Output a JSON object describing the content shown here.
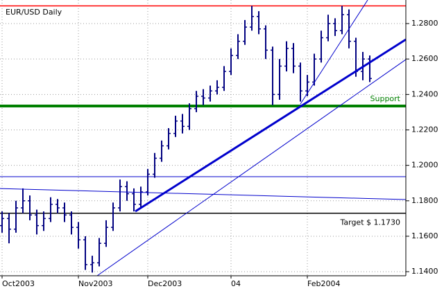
{
  "chart_data": {
    "type": "ohlc",
    "title": "EUR/USD Daily",
    "categories": [
      "Oct2003",
      null,
      null,
      null,
      null,
      null,
      null,
      null,
      null,
      null,
      null,
      "Nov2003",
      null,
      null,
      null,
      null,
      null,
      null,
      null,
      null,
      null,
      "Dec2003",
      null,
      null,
      null,
      null,
      null,
      null,
      null,
      null,
      null,
      null,
      null,
      "04",
      null,
      null,
      null,
      null,
      null,
      null,
      null,
      null,
      null,
      null,
      "Feb2004",
      null,
      null,
      null,
      null,
      null,
      null,
      null,
      null,
      null
    ],
    "open": [
      1.166,
      1.17,
      1.164,
      1.176,
      1.18,
      1.172,
      1.166,
      1.17,
      1.178,
      1.176,
      1.172,
      1.165,
      1.158,
      1.144,
      1.145,
      1.156,
      1.165,
      1.176,
      1.188,
      1.184,
      1.178,
      1.185,
      1.195,
      1.204,
      1.211,
      1.218,
      1.225,
      1.222,
      1.232,
      1.239,
      1.238,
      1.242,
      1.244,
      1.253,
      1.262,
      1.27,
      1.278,
      1.284,
      1.277,
      1.265,
      1.24,
      1.256,
      1.266,
      1.256,
      1.242,
      1.247,
      1.26,
      1.272,
      1.28,
      1.276,
      1.285,
      1.27,
      1.253,
      1.26
    ],
    "high": [
      1.174,
      1.173,
      1.18,
      1.187,
      1.183,
      1.175,
      1.174,
      1.182,
      1.181,
      1.179,
      1.174,
      1.168,
      1.16,
      1.149,
      1.159,
      1.169,
      1.179,
      1.192,
      1.191,
      1.187,
      1.188,
      1.198,
      1.207,
      1.214,
      1.221,
      1.228,
      1.229,
      1.235,
      1.242,
      1.243,
      1.245,
      1.248,
      1.256,
      1.266,
      1.274,
      1.282,
      1.29,
      1.287,
      1.279,
      1.267,
      1.26,
      1.27,
      1.269,
      1.258,
      1.251,
      1.263,
      1.276,
      1.285,
      1.283,
      1.29,
      1.288,
      1.272,
      1.264,
      1.262
    ],
    "low": [
      1.162,
      1.156,
      1.162,
      1.173,
      1.169,
      1.161,
      1.163,
      1.168,
      1.173,
      1.168,
      1.161,
      1.153,
      1.141,
      1.1395,
      1.143,
      1.154,
      1.163,
      1.174,
      1.18,
      1.174,
      1.176,
      1.183,
      1.193,
      1.202,
      1.209,
      1.216,
      1.218,
      1.22,
      1.23,
      1.234,
      1.236,
      1.24,
      1.242,
      1.251,
      1.26,
      1.268,
      1.276,
      1.274,
      1.26,
      1.234,
      1.237,
      1.253,
      1.252,
      1.236,
      1.239,
      1.245,
      1.258,
      1.27,
      1.273,
      1.274,
      1.266,
      1.25,
      1.248,
      1.247
    ],
    "close": [
      1.17,
      1.164,
      1.176,
      1.18,
      1.172,
      1.166,
      1.17,
      1.178,
      1.176,
      1.172,
      1.165,
      1.158,
      1.144,
      1.145,
      1.156,
      1.165,
      1.176,
      1.188,
      1.184,
      1.178,
      1.185,
      1.195,
      1.204,
      1.211,
      1.218,
      1.225,
      1.222,
      1.232,
      1.239,
      1.238,
      1.242,
      1.244,
      1.253,
      1.262,
      1.27,
      1.278,
      1.284,
      1.277,
      1.265,
      1.24,
      1.256,
      1.266,
      1.256,
      1.242,
      1.247,
      1.26,
      1.272,
      1.28,
      1.276,
      1.285,
      1.27,
      1.253,
      1.26,
      1.249
    ],
    "color": "#000080",
    "ylim": [
      1.1377,
      1.2933
    ],
    "yticks": [
      {
        "value": 1.14,
        "label": "1.1400"
      },
      {
        "value": 1.16,
        "label": "1.1600"
      },
      {
        "value": 1.18,
        "label": "1.1800"
      },
      {
        "value": 1.2,
        "label": "1.2000"
      },
      {
        "value": 1.22,
        "label": "1.2200"
      },
      {
        "value": 1.24,
        "label": "1.2400"
      },
      {
        "value": 1.26,
        "label": "1.2600"
      },
      {
        "value": 1.28,
        "label": "1.2800"
      }
    ],
    "grid": true,
    "hlines": [
      {
        "value": 1.29,
        "color": "#ff0000",
        "width": 1.5
      },
      {
        "value": 1.2335,
        "color": "#008000",
        "width": 4,
        "label": "Support"
      },
      {
        "value": 1.1936,
        "color": "#0000cc",
        "width": 1
      },
      {
        "value": 1.173,
        "color": "#000000",
        "width": 1.5,
        "label": "Target $ 1.1730"
      }
    ],
    "trendlines": [
      {
        "from": [
          19.2,
          1.174
        ],
        "to": [
          58.2,
          1.271
        ],
        "color": "#0000cc",
        "width": 3
      },
      {
        "from": [
          13.7,
          1.1377
        ],
        "to": [
          58.2,
          1.2597
        ],
        "color": "#0000cc",
        "width": 1
      },
      {
        "from": [
          43,
          1.2346
        ],
        "to": [
          52.7,
          1.2933
        ],
        "color": "#0000cc",
        "width": 1
      },
      {
        "from": [
          -0.3,
          1.1869
        ],
        "to": [
          58.2,
          1.1807
        ],
        "color": "#0000cc",
        "width": 1
      }
    ]
  }
}
